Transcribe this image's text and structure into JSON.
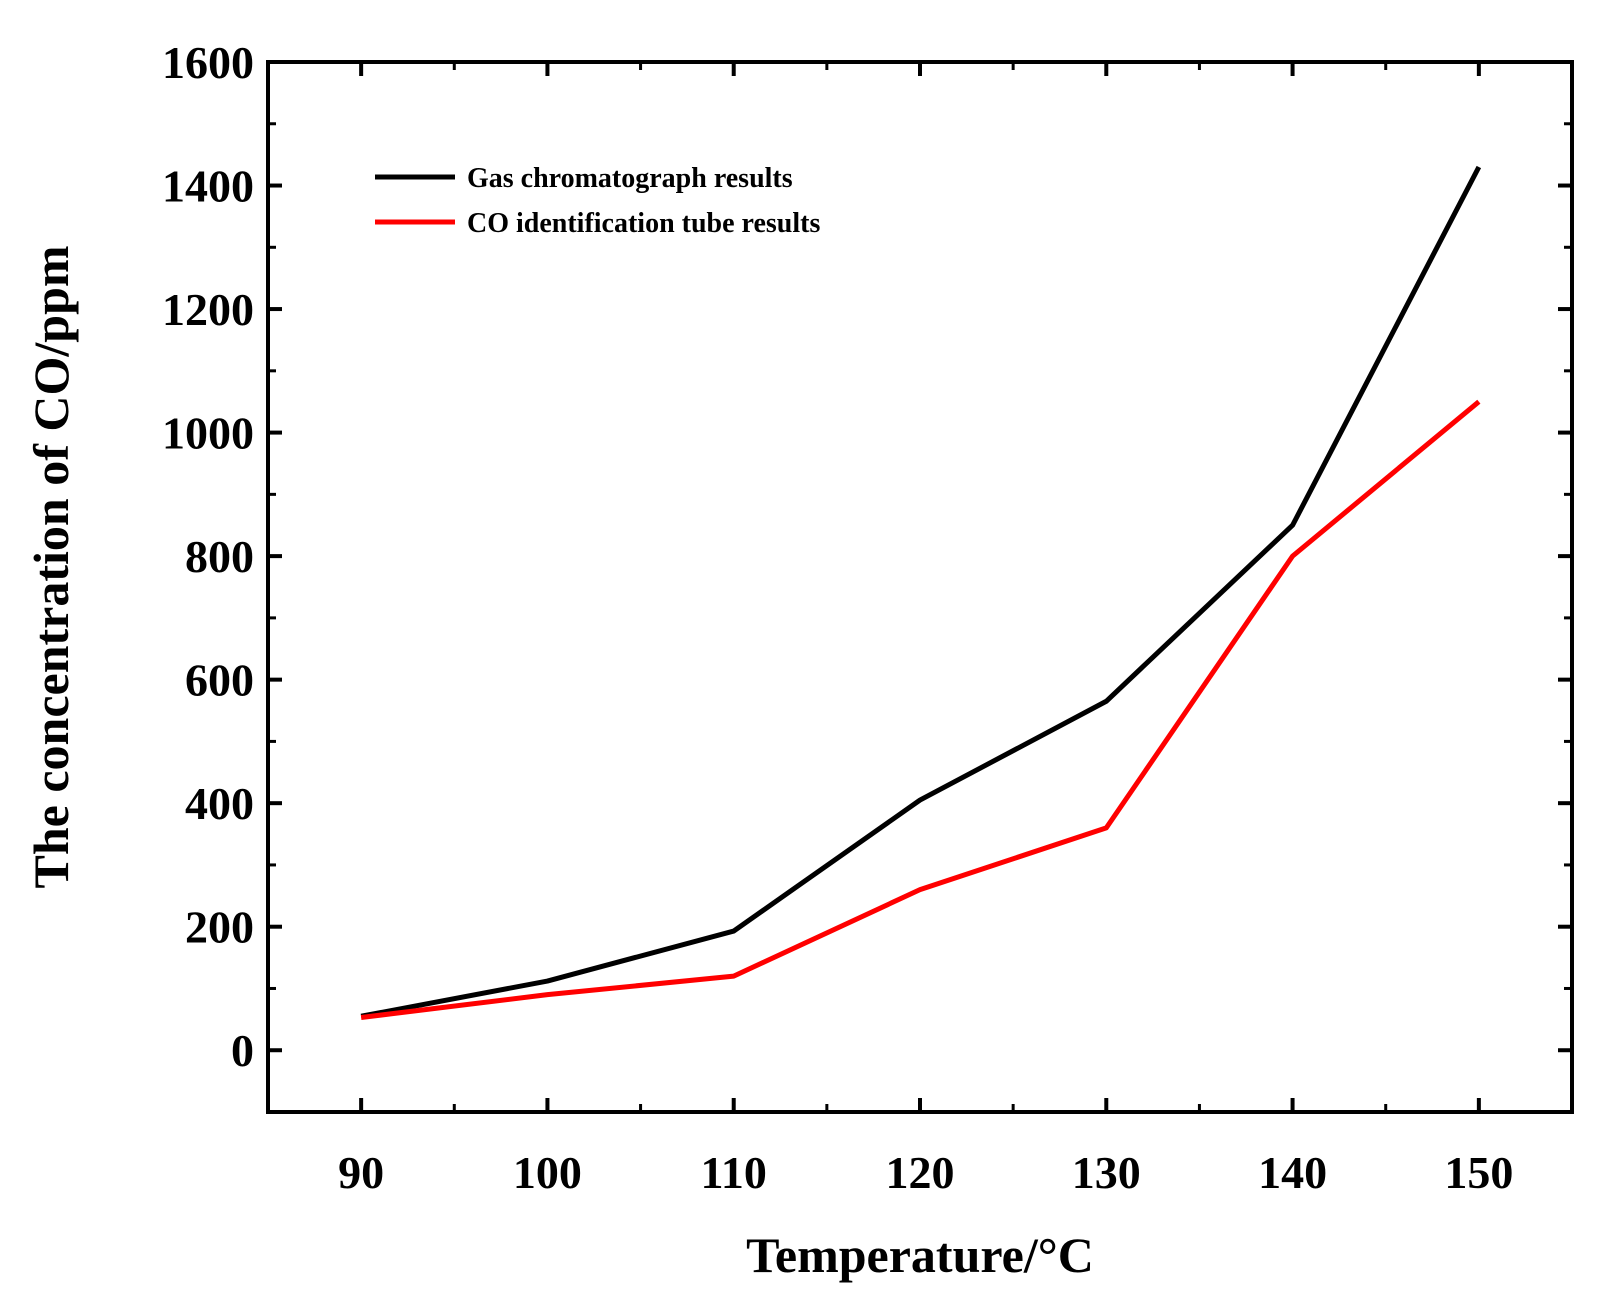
{
  "chart_data": {
    "type": "line",
    "title": "",
    "xlabel": "Temperature/°C",
    "ylabel": "The concentration of CO/ppm",
    "x": [
      90,
      100,
      110,
      120,
      130,
      140,
      150
    ],
    "xlim": [
      85,
      155
    ],
    "ylim": [
      -100,
      1600
    ],
    "xticks": [
      90,
      100,
      110,
      120,
      130,
      140,
      150
    ],
    "xtick_labels": [
      "90",
      "100",
      "110",
      "120",
      "130",
      "140",
      "150"
    ],
    "yticks": [
      0,
      200,
      400,
      600,
      800,
      1000,
      1200,
      1400,
      1600
    ],
    "ytick_labels": [
      "0",
      "200",
      "400",
      "600",
      "800",
      "1000",
      "1200",
      "1400",
      "1600"
    ],
    "grid": false,
    "legend_position": "top-left",
    "series": [
      {
        "name": "Gas chromatograph results",
        "color": "#000000",
        "values": [
          55,
          112,
          193,
          405,
          565,
          850,
          1430
        ]
      },
      {
        "name": "CO identification tube results",
        "color": "#ff0000",
        "values": [
          53,
          90,
          120,
          260,
          360,
          800,
          1050
        ]
      }
    ]
  }
}
